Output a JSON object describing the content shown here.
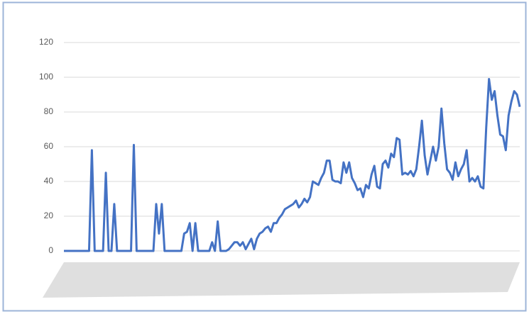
{
  "chart_data": {
    "type": "line",
    "categories": [
      null,
      null,
      null,
      null,
      null,
      null,
      null,
      null,
      null,
      null,
      null,
      null,
      null,
      null,
      null,
      null,
      null,
      null,
      null,
      null,
      null,
      null,
      null,
      null,
      null,
      null,
      null,
      null,
      null,
      null,
      null,
      null,
      null,
      null,
      null,
      null,
      null,
      null,
      null,
      null,
      null,
      null,
      null,
      null,
      null,
      null,
      null,
      null,
      null,
      null,
      null,
      null,
      null,
      null,
      null,
      null,
      null,
      null,
      null,
      null,
      null,
      null,
      null,
      null,
      null,
      null,
      null,
      null,
      null,
      null,
      null,
      null,
      null,
      null,
      null,
      null,
      null,
      null,
      null,
      null,
      null,
      null,
      null,
      null,
      null,
      null,
      null,
      null,
      null,
      null,
      null,
      null,
      null,
      null,
      null,
      null,
      null,
      null,
      null,
      null,
      null,
      null,
      null,
      null,
      null,
      null,
      null,
      null,
      null,
      null,
      null,
      null,
      null,
      null,
      null,
      null,
      null,
      null,
      null,
      null,
      null,
      null,
      null,
      null,
      null,
      null,
      null,
      null,
      null,
      null,
      null,
      null,
      null,
      null,
      null,
      null,
      null,
      null,
      null,
      null,
      null,
      null,
      null,
      null,
      null,
      null,
      null,
      null,
      null,
      null,
      null,
      null,
      null,
      null,
      null,
      null,
      null,
      null,
      null,
      null,
      null,
      null,
      null,
      null
    ],
    "values": [
      0,
      0,
      0,
      0,
      0,
      0,
      0,
      0,
      0,
      0,
      58,
      0,
      0,
      0,
      0,
      45,
      0,
      0,
      27,
      0,
      0,
      0,
      0,
      0,
      0,
      61,
      0,
      0,
      0,
      0,
      0,
      0,
      0,
      27,
      10,
      27,
      0,
      0,
      0,
      0,
      0,
      0,
      0,
      10,
      11,
      16,
      0,
      16,
      0,
      0,
      0,
      0,
      0,
      5,
      0,
      17,
      0,
      0,
      0,
      1,
      3,
      5,
      5,
      3,
      5,
      1,
      4,
      7,
      1,
      7,
      10,
      11,
      13,
      14,
      11,
      16,
      16,
      19,
      21,
      24,
      25,
      26,
      27,
      29,
      25,
      27,
      30,
      28,
      31,
      40,
      39,
      38,
      42,
      45,
      52,
      52,
      41,
      40,
      40,
      39,
      51,
      45,
      51,
      42,
      39,
      35,
      36,
      31,
      38,
      36,
      44,
      49,
      37,
      36,
      50,
      52,
      48,
      56,
      54,
      65,
      64,
      44,
      45,
      44,
      46,
      43,
      47,
      60,
      75,
      55,
      44,
      52,
      60,
      52,
      60,
      82,
      62,
      47,
      45,
      41,
      51,
      43,
      47,
      50,
      58,
      40,
      42,
      40,
      43,
      37,
      36,
      71,
      99,
      87,
      92,
      78,
      67,
      66,
      58,
      78,
      86,
      92,
      90,
      83
    ],
    "color": "#4472c4",
    "ylim": [
      0,
      120
    ],
    "yticks": [
      0,
      20,
      40,
      60,
      80,
      100,
      120
    ],
    "grid": true
  }
}
